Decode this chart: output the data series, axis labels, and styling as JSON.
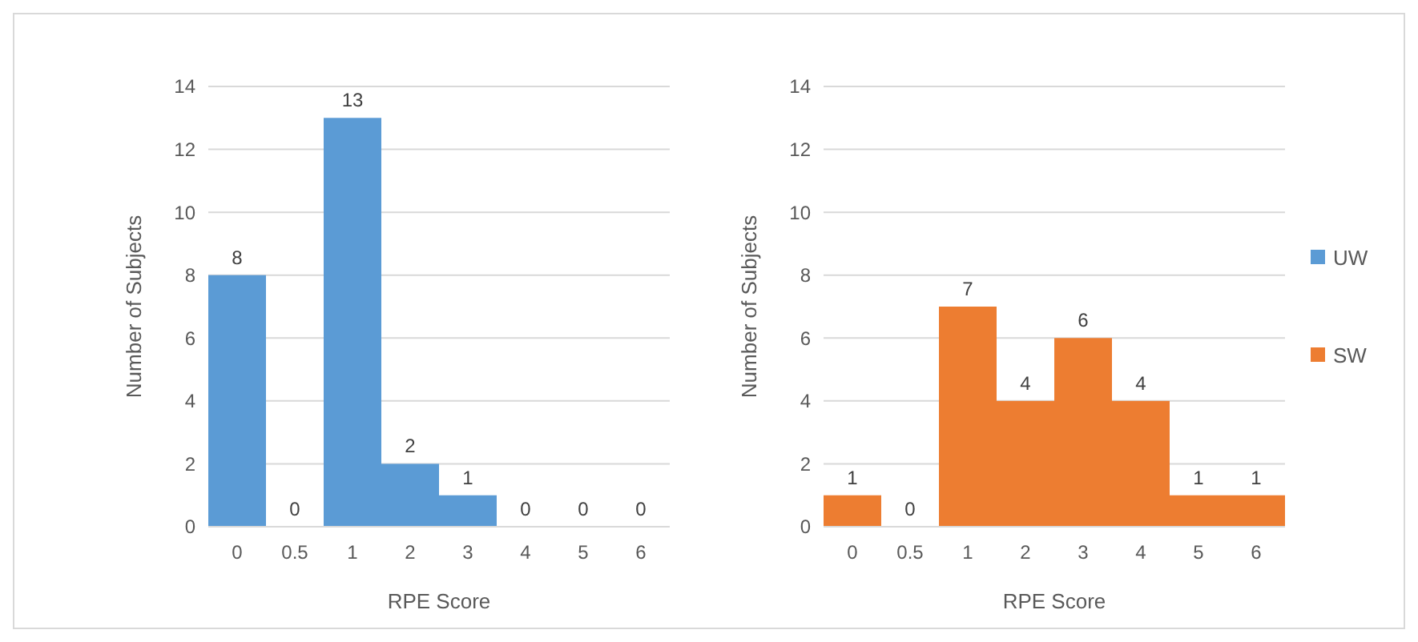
{
  "chart_data": [
    {
      "type": "bar",
      "categories": [
        "0",
        "0.5",
        "1",
        "2",
        "3",
        "4",
        "5",
        "6"
      ],
      "series": [
        {
          "name": "UW",
          "color": "#5b9bd5",
          "values": [
            8,
            0,
            13,
            2,
            1,
            0,
            0,
            0
          ]
        }
      ],
      "xlabel": "RPE Score",
      "ylabel": "Number of Subjects",
      "ylim": [
        0,
        14
      ],
      "yticks": [
        0,
        2,
        4,
        6,
        8,
        10,
        12,
        14
      ],
      "grid": "y",
      "data_labels": true,
      "legend": "right"
    },
    {
      "type": "bar",
      "categories": [
        "0",
        "0.5",
        "1",
        "2",
        "3",
        "4",
        "5",
        "6"
      ],
      "series": [
        {
          "name": "SW",
          "color": "#ed7d31",
          "values": [
            1,
            0,
            7,
            4,
            6,
            4,
            1,
            1
          ]
        }
      ],
      "xlabel": "RPE Score",
      "ylabel": "Number of Subjects",
      "ylim": [
        0,
        14
      ],
      "yticks": [
        0,
        2,
        4,
        6,
        8,
        10,
        12,
        14
      ],
      "grid": "y",
      "data_labels": true,
      "legend": "right"
    }
  ]
}
